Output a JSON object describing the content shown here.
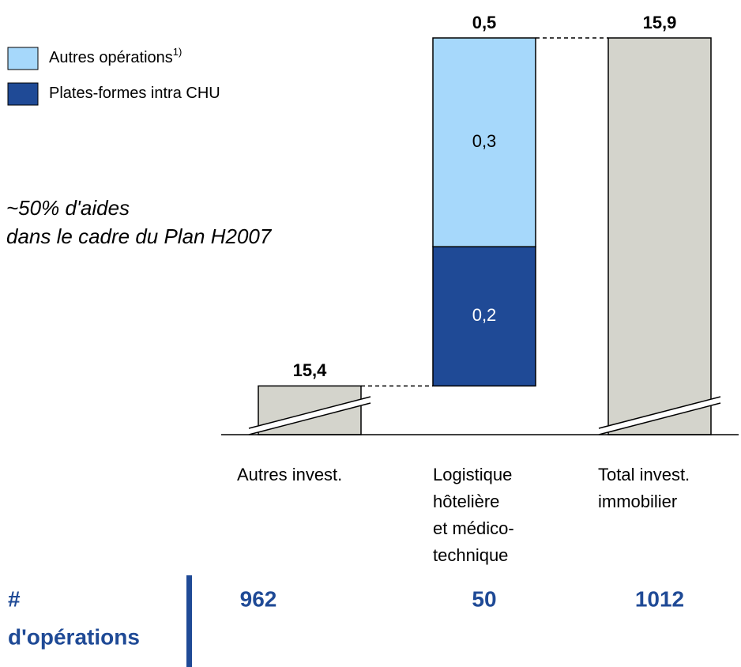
{
  "chart_data": {
    "type": "waterfall",
    "categories": [
      [
        "Autres invest."
      ],
      [
        "Logistique",
        "hôtelière",
        "et médico-",
        "technique"
      ],
      [
        "Total invest.",
        "immobilier"
      ]
    ],
    "bar_kinds": [
      "absolute",
      "relative",
      "total"
    ],
    "values": [
      15.4,
      0.5,
      15.9
    ],
    "value_labels": [
      "15,4",
      "0,5",
      "15,9"
    ],
    "color": "#d4d4cc",
    "series": [
      {
        "name": "Plates-formes intra CHU",
        "color": "#1f4a96",
        "values": [
          null,
          0.2,
          null
        ],
        "value_labels": [
          null,
          "0,2",
          null
        ]
      },
      {
        "name": "Autres opérations",
        "name_note": "1)",
        "color": "#a6d8fb",
        "values": [
          null,
          0.3,
          null
        ],
        "value_labels": [
          null,
          "0,3",
          null
        ]
      }
    ],
    "ylim": [
      15.33,
      15.9
    ],
    "axis_break": true,
    "annotation": [
      "~50% d'aides",
      "dans le cadre du Plan H2007"
    ],
    "counts": {
      "label": [
        "#",
        "d'opérations"
      ],
      "values": [
        962,
        50,
        1012
      ]
    }
  }
}
